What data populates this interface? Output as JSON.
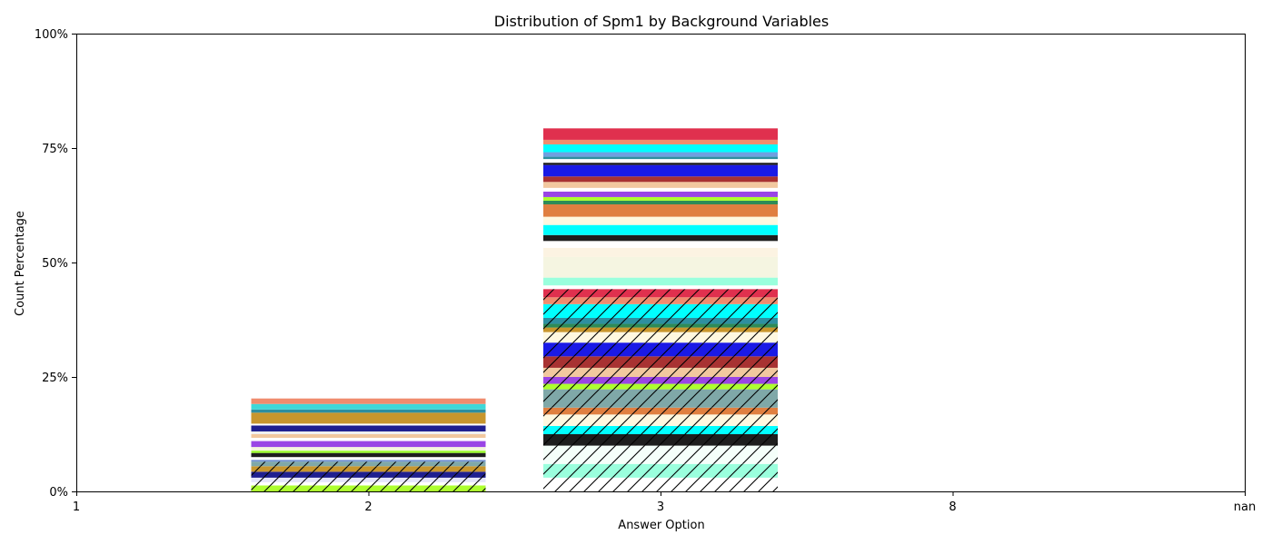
{
  "chart_data": {
    "type": "bar",
    "stacked": true,
    "title": "Distribution of Spm1 by Background Variables",
    "xlabel": "Answer Option",
    "ylabel": "Count Percentage",
    "categories": [
      "1",
      "2",
      "3",
      "8",
      "nan"
    ],
    "ylim": [
      0,
      100
    ],
    "yticks": [
      0,
      25,
      50,
      75,
      100
    ],
    "ytick_labels": [
      "0%",
      "25%",
      "50%",
      "75%",
      "100%"
    ],
    "grid": false,
    "legend": "none",
    "bars": [
      {
        "category": "2",
        "total": 20,
        "segments": [
          {
            "value": 1.3,
            "color": "#adff2f",
            "hatch": true
          },
          {
            "value": 0.7,
            "color": "#ffffff",
            "hatch": true
          },
          {
            "value": 1.0,
            "color": "#e6e6fa",
            "hatch": true
          },
          {
            "value": 1.3,
            "color": "#1f1f8f",
            "hatch": true
          },
          {
            "value": 1.2,
            "color": "#c8962d",
            "hatch": true
          },
          {
            "value": 1.0,
            "color": "#7fa8a8",
            "hatch": true
          },
          {
            "value": 0.4,
            "color": "#6f8fd0",
            "hatch": false
          },
          {
            "value": 0.6,
            "color": "#ffffff",
            "hatch": false
          },
          {
            "value": 0.9,
            "color": "#1e1e1e",
            "hatch": false
          },
          {
            "value": 0.5,
            "color": "#9aff2a",
            "hatch": false
          },
          {
            "value": 0.8,
            "color": "#f5f5dc",
            "hatch": false
          },
          {
            "value": 1.3,
            "color": "#9a45e5",
            "hatch": false
          },
          {
            "value": 0.7,
            "color": "#ffffff",
            "hatch": false
          },
          {
            "value": 0.8,
            "color": "#f2c89f",
            "hatch": false
          },
          {
            "value": 0.6,
            "color": "#f0f0f0",
            "hatch": false
          },
          {
            "value": 1.3,
            "color": "#1f1f8f",
            "hatch": false
          },
          {
            "value": 0.4,
            "color": "#ffffff",
            "hatch": false
          },
          {
            "value": 2.4,
            "color": "#c8962d",
            "hatch": false
          },
          {
            "value": 0.7,
            "color": "#2e8fa0",
            "hatch": false
          },
          {
            "value": 1.2,
            "color": "#3fd8d8",
            "hatch": false
          },
          {
            "value": 1.2,
            "color": "#f08c6e",
            "hatch": false
          }
        ]
      },
      {
        "category": "3",
        "total": 80,
        "segments": [
          {
            "value": 3.0,
            "color": "#ffffff",
            "hatch": true
          },
          {
            "value": 3.0,
            "color": "#9affdd",
            "hatch": true
          },
          {
            "value": 4.0,
            "color": "#f5fffa",
            "hatch": true
          },
          {
            "value": 2.5,
            "color": "#1e1e1e",
            "hatch": true
          },
          {
            "value": 1.8,
            "color": "#00ffff",
            "hatch": true
          },
          {
            "value": 2.5,
            "color": "#fff8e0",
            "hatch": true
          },
          {
            "value": 1.5,
            "color": "#e07f40",
            "hatch": true
          },
          {
            "value": 4.0,
            "color": "#7fa8a8",
            "hatch": true
          },
          {
            "value": 1.2,
            "color": "#adff2f",
            "hatch": true
          },
          {
            "value": 1.5,
            "color": "#9a45e5",
            "hatch": true
          },
          {
            "value": 2.0,
            "color": "#f2c89f",
            "hatch": true
          },
          {
            "value": 2.5,
            "color": "#a83232",
            "hatch": true
          },
          {
            "value": 3.0,
            "color": "#1a1ae6",
            "hatch": true
          },
          {
            "value": 2.3,
            "color": "#fff8e0",
            "hatch": true
          },
          {
            "value": 1.0,
            "color": "#c8962d",
            "hatch": true
          },
          {
            "value": 0.8,
            "color": "#2e8b57",
            "hatch": true
          },
          {
            "value": 1.3,
            "color": "#2e8fa0",
            "hatch": true
          },
          {
            "value": 3.0,
            "color": "#00ffff",
            "hatch": true
          },
          {
            "value": 1.5,
            "color": "#f08c6e",
            "hatch": true
          },
          {
            "value": 1.8,
            "color": "#e0304e",
            "hatch": true
          },
          {
            "value": 0.8,
            "color": "#ffffff",
            "hatch": false
          },
          {
            "value": 1.7,
            "color": "#9affdd",
            "hatch": false
          },
          {
            "value": 4.5,
            "color": "#f5f5e1",
            "hatch": false
          },
          {
            "value": 2.0,
            "color": "#fcf3e2",
            "hatch": false
          },
          {
            "value": 1.5,
            "color": "#ffffff",
            "hatch": false
          },
          {
            "value": 1.3,
            "color": "#1e1e1e",
            "hatch": false
          },
          {
            "value": 2.2,
            "color": "#00ffff",
            "hatch": false
          },
          {
            "value": 1.8,
            "color": "#fff8e0",
            "hatch": false
          },
          {
            "value": 2.7,
            "color": "#e07f40",
            "hatch": false
          },
          {
            "value": 0.8,
            "color": "#2e8b57",
            "hatch": false
          },
          {
            "value": 0.8,
            "color": "#adff2f",
            "hatch": false
          },
          {
            "value": 1.2,
            "color": "#9a45e5",
            "hatch": false
          },
          {
            "value": 0.8,
            "color": "#ffffff",
            "hatch": false
          },
          {
            "value": 1.3,
            "color": "#f2c89f",
            "hatch": false
          },
          {
            "value": 1.2,
            "color": "#a83232",
            "hatch": false
          },
          {
            "value": 2.5,
            "color": "#1a1ae6",
            "hatch": false
          },
          {
            "value": 0.5,
            "color": "#1e1e1e",
            "hatch": false
          },
          {
            "value": 0.8,
            "color": "#ffffff",
            "hatch": false
          },
          {
            "value": 0.5,
            "color": "#2e8fa0",
            "hatch": false
          },
          {
            "value": 1.0,
            "color": "#6fa0e0",
            "hatch": false
          },
          {
            "value": 1.7,
            "color": "#00ffff",
            "hatch": false
          },
          {
            "value": 1.0,
            "color": "#f08c6e",
            "hatch": false
          },
          {
            "value": 2.5,
            "color": "#e0304e",
            "hatch": false
          }
        ]
      }
    ]
  }
}
